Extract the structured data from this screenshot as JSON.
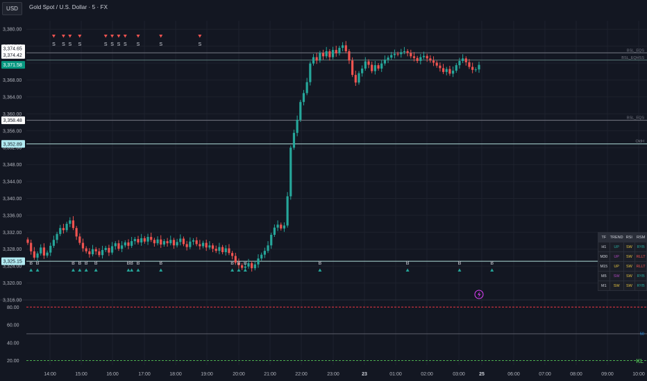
{
  "header": {
    "currency": "USD",
    "title": "Gold Spot / U.S. Dollar · 5 · FX"
  },
  "colors": {
    "up": "#26a69a",
    "down": "#ef5350",
    "background": "#131722",
    "grid": "#1e222d",
    "text": "#b2b5be"
  },
  "chart_data": [
    {
      "type": "candlestick",
      "title": "Gold Spot / U.S. Dollar · 5 · FX",
      "ylim": [
        3316,
        3382
      ],
      "y_ticks": [
        3316,
        3320,
        3324,
        3328,
        3332,
        3336,
        3340,
        3344,
        3348,
        3352,
        3356,
        3360,
        3364,
        3368,
        3372,
        3376,
        3380
      ],
      "y_tick_labels": [
        "3,316.00",
        "3,320.00",
        "3,324.00",
        "3,328.00",
        "3,332.00",
        "3,336.00",
        "3,340.00",
        "3,344.00",
        "3,348.00",
        "3,352.00",
        "3,356.00",
        "3,360.00",
        "3,364.00",
        "3,368.00",
        "3,372.00",
        "3,376.00",
        "3,380.00"
      ],
      "x_ticks": [
        "14:00",
        "15:00",
        "16:00",
        "17:00",
        "18:00",
        "19:00",
        "20:00",
        "21:00",
        "22:00",
        "23:00",
        "23",
        "01:00",
        "02:00",
        "03:00",
        "25",
        "06:00",
        "07:00",
        "08:00",
        "09:00",
        "10:00"
      ],
      "x_tick_bold": [
        "23",
        "25"
      ],
      "price_labels": [
        {
          "value": 3374.65,
          "label": "3,374.65",
          "style": "white"
        },
        {
          "value": 3374.42,
          "label": "3,374.42",
          "style": "white"
        },
        {
          "value": 3371.58,
          "label": "3,371.58",
          "style": "current"
        },
        {
          "value": 3358.48,
          "label": "3,358.48",
          "style": "white"
        },
        {
          "value": 3352.89,
          "label": "3,352.89",
          "style": "level"
        },
        {
          "value": 3325.15,
          "label": "3,325.15",
          "style": "level"
        }
      ],
      "levels": [
        {
          "value": 3374.42,
          "label": "BSL_EQS"
        },
        {
          "value": 3372.7,
          "label": "BSL_EQHSS"
        },
        {
          "value": 3358.48,
          "label": "BSL_EQS"
        },
        {
          "value": 3352.89,
          "label": "OldH"
        },
        {
          "value": 3325.15,
          "label": ""
        }
      ],
      "closes": [
        3329.5,
        3327.5,
        3326,
        3327,
        3328.4,
        3326.5,
        3327.2,
        3328.8,
        3330.2,
        3331.6,
        3333,
        3332.5,
        3334,
        3334.8,
        3333,
        3331,
        3329.5,
        3328.2,
        3327.5,
        3326.8,
        3328,
        3327.5,
        3326.6,
        3327.8,
        3328.3,
        3327.2,
        3328.7,
        3329.4,
        3328.1,
        3328.9,
        3329.6,
        3328.8,
        3329.9,
        3330.4,
        3329.6,
        3330.6,
        3329.8,
        3330.9,
        3330.2,
        3329.4,
        3330.3,
        3329.1,
        3329.9,
        3329.4,
        3330.2,
        3328.9,
        3329.7,
        3330.5,
        3329.2,
        3328.5,
        3329.8,
        3330.1,
        3329.2,
        3328.7,
        3329.5,
        3328.4,
        3328.9,
        3328.1,
        3327.6,
        3328.5,
        3327.3,
        3328.2,
        3327.1,
        3326.4,
        3324.8,
        3324.2,
        3323.6,
        3323.9,
        3324.7,
        3323.5,
        3324.4,
        3325.8,
        3326.7,
        3327.6,
        3328.9,
        3331.4,
        3333.1,
        3333.8,
        3332.9,
        3333.6,
        3340.5,
        3352,
        3355.5,
        3358.6,
        3362.8,
        3364.9,
        3367.5,
        3371.9,
        3373.4,
        3372.6,
        3374.4,
        3373.6,
        3374.8,
        3373.4,
        3375.1,
        3374.3,
        3375.6,
        3376.2,
        3374.8,
        3372.6,
        3369.2,
        3367.4,
        3369.6,
        3370.7,
        3372.4,
        3371.6,
        3370.1,
        3371.5,
        3370.7,
        3371.9,
        3372.8,
        3373.3,
        3373.9,
        3374.2,
        3374.1,
        3374.6,
        3374.8,
        3374.4,
        3373.6,
        3373.2,
        3372.5,
        3373.4,
        3373.7,
        3373.1,
        3372.6,
        3372.1,
        3371.4,
        3370.8,
        3369.9,
        3370.6,
        3369.5,
        3370.2,
        3371.5,
        3372.5,
        3373.1,
        3372.2,
        3371.1,
        3370.4,
        3370.5,
        3371.58
      ],
      "sell_signals": [
        8,
        11,
        13,
        16,
        24,
        26,
        28,
        30,
        34,
        41,
        53
      ],
      "buy_signals": [
        1,
        3,
        14,
        16,
        18,
        21,
        31,
        32,
        34,
        41,
        63,
        65,
        67,
        90,
        117,
        133,
        143
      ],
      "sell_label": "S",
      "buy_label": "B"
    },
    {
      "type": "line",
      "name": "RSI pane",
      "ylim": [
        15,
        88
      ],
      "y_ticks": [
        20,
        40,
        60,
        80
      ],
      "y_tick_labels": [
        "20.00",
        "40.00",
        "60.00",
        "80.00"
      ],
      "levels": [
        80,
        50,
        20
      ],
      "values": [
        50.3
      ],
      "value_label": "50",
      "corner_label": "KL"
    }
  ],
  "status_table": {
    "headers": [
      "TF",
      "TREND",
      "RSI",
      "RSM"
    ],
    "rows": [
      {
        "tf": "H1",
        "trend": "UP",
        "rsi": "SW",
        "rsm": "RYB",
        "trend_color": "#26a69a",
        "rsi_color": "#e0c040",
        "rsm_color": "#26a69a"
      },
      {
        "tf": "M30",
        "trend": "UP",
        "rsi": "SW",
        "rsm": "RLLT",
        "trend_color": "#ab47bc",
        "rsi_color": "#e0c040",
        "rsm_color": "#ef5350"
      },
      {
        "tf": "M15",
        "trend": "UP",
        "rsi": "SW",
        "rsm": "RLLT",
        "trend_color": "#e0c040",
        "rsi_color": "#e0c040",
        "rsm_color": "#ef5350"
      },
      {
        "tf": "M5",
        "trend": "SW",
        "rsi": "SW",
        "rsm": "RYB",
        "trend_color": "#ab47bc",
        "rsi_color": "#e0c040",
        "rsm_color": "#26a69a"
      },
      {
        "tf": "M1",
        "trend": "SW",
        "rsi": "SW",
        "rsm": "RYB",
        "trend_color": "#e0c040",
        "rsi_color": "#e0c040",
        "rsm_color": "#26a69a"
      }
    ]
  }
}
